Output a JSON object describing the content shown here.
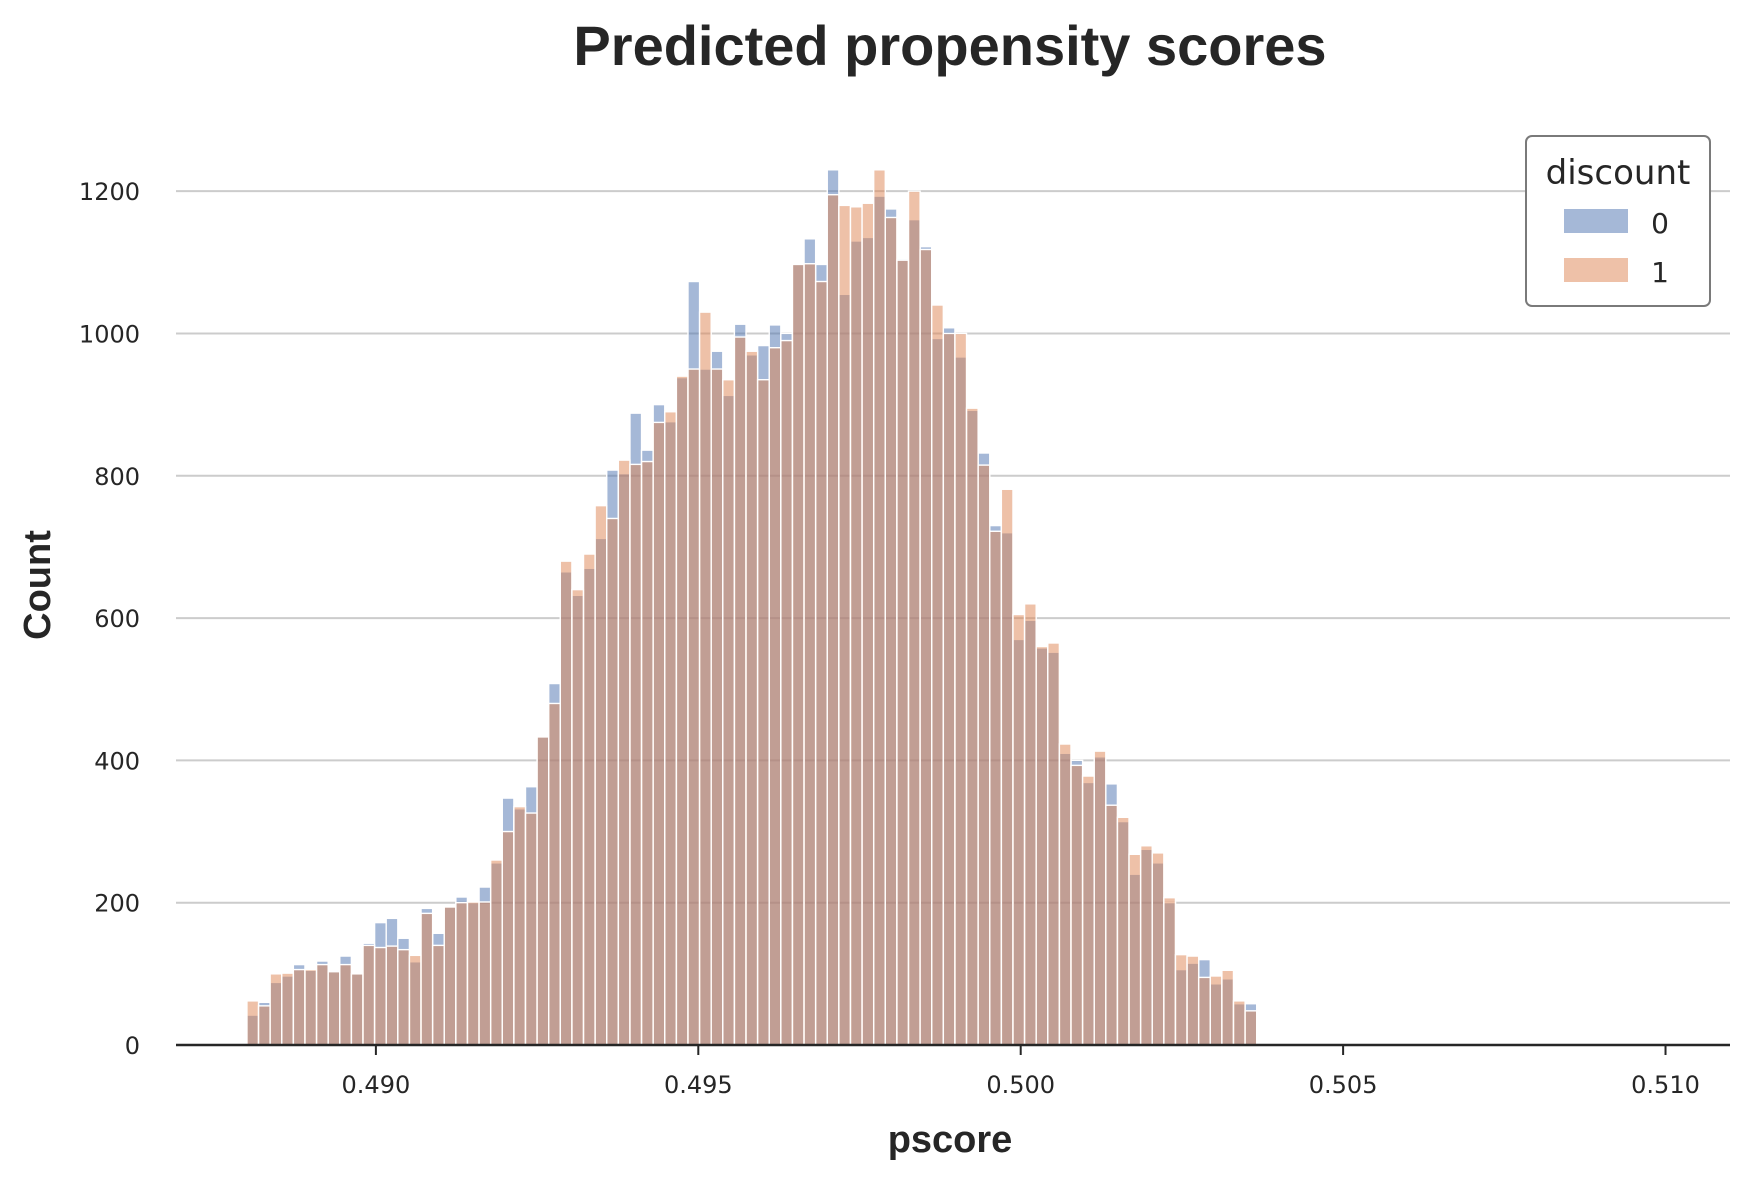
{
  "chart_data": {
    "type": "histogram",
    "title": "Predicted propensity scores",
    "xlabel": "pscore",
    "ylabel": "Count",
    "xlim": [
      0.4869,
      0.511
    ],
    "ylim": [
      0,
      1300
    ],
    "xticks": [
      0.49,
      0.495,
      0.5,
      0.505,
      0.51
    ],
    "xtick_labels": [
      "0.490",
      "0.495",
      "0.500",
      "0.505",
      "0.510"
    ],
    "yticks": [
      0,
      200,
      400,
      600,
      800,
      1000,
      1200
    ],
    "ytick_labels": [
      "0",
      "200",
      "400",
      "600",
      "800",
      "1000",
      "1200"
    ],
    "grid": "y",
    "bin_start": 0.488,
    "bin_width": 0.00018,
    "legend": {
      "title": "discount",
      "position": "top-right"
    },
    "series": [
      {
        "name": "0",
        "color": "#4c72b0",
        "values": [
          42,
          60,
          88,
          97,
          113,
          105,
          118,
          105,
          125,
          100,
          143,
          172,
          178,
          150,
          117,
          192,
          157,
          194,
          208,
          200,
          222,
          256,
          347,
          332,
          363,
          433,
          508,
          665,
          632,
          670,
          712,
          808,
          803,
          888,
          836,
          900,
          876,
          938,
          1073,
          950,
          975,
          913,
          1013,
          970,
          983,
          1012,
          1000,
          1098,
          1133,
          1097,
          1230,
          1055,
          1130,
          1135,
          1193,
          1175,
          1105,
          1160,
          1122,
          993,
          1008,
          967,
          892,
          832,
          730,
          720,
          570,
          597,
          558,
          552,
          410,
          400,
          369,
          405,
          367,
          314,
          240,
          275,
          256,
          200,
          106,
          115,
          120,
          86,
          93,
          58,
          58
        ]
      },
      {
        "name": "1",
        "color": "#dd8452",
        "values": [
          62,
          55,
          100,
          101,
          106,
          106,
          113,
          103,
          113,
          100,
          140,
          137,
          139,
          134,
          126,
          185,
          140,
          194,
          200,
          201,
          201,
          260,
          300,
          335,
          326,
          433,
          480,
          680,
          640,
          690,
          758,
          740,
          822,
          816,
          820,
          875,
          890,
          940,
          950,
          1030,
          950,
          935,
          995,
          975,
          935,
          980,
          990,
          1097,
          1098,
          1073,
          1195,
          1180,
          1178,
          1183,
          1230,
          1163,
          1103,
          1200,
          1118,
          1040,
          1000,
          1000,
          895,
          815,
          722,
          781,
          605,
          620,
          560,
          565,
          423,
          393,
          378,
          413,
          337,
          320,
          268,
          280,
          270,
          207,
          127,
          125,
          95,
          97,
          105,
          62,
          48
        ]
      }
    ]
  }
}
